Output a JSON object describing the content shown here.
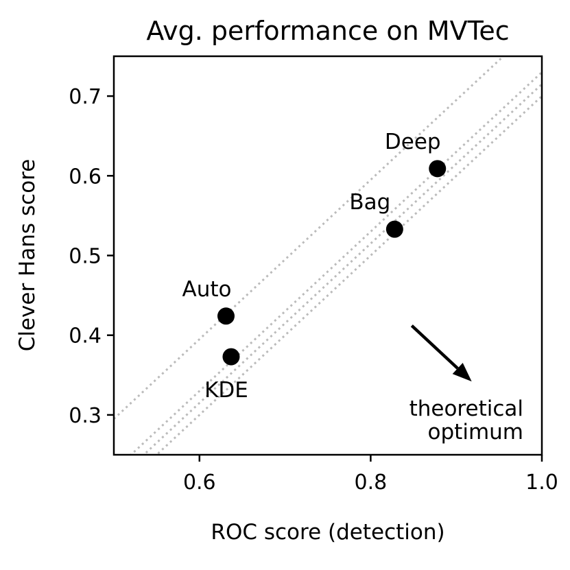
{
  "chart_data": {
    "type": "scatter",
    "title": "Avg. performance on MVTec",
    "xlabel": "ROC score (detection)",
    "ylabel": "Clever Hans score",
    "xlim": [
      0.5,
      1.0
    ],
    "ylim": [
      0.25,
      0.75
    ],
    "xticks": [
      0.6,
      0.8,
      1.0
    ],
    "xtick_labels": [
      "0.6",
      "0.8",
      "1.0"
    ],
    "yticks": [
      0.3,
      0.4,
      0.5,
      0.6,
      0.7
    ],
    "ytick_labels": [
      "0.3",
      "0.4",
      "0.5",
      "0.6",
      "0.7"
    ],
    "grid": false,
    "points": [
      {
        "label": "Deep",
        "x": 0.878,
        "y": 0.609
      },
      {
        "label": "Bag",
        "x": 0.828,
        "y": 0.533
      },
      {
        "label": "Auto",
        "x": 0.631,
        "y": 0.424
      },
      {
        "label": "KDE",
        "x": 0.637,
        "y": 0.373
      }
    ],
    "reference_lines": [
      {
        "x": [
          0.5,
          1.0
        ],
        "y": [
          0.295,
          0.795
        ]
      },
      {
        "x": [
          0.5,
          1.0
        ],
        "y": [
          0.215,
          0.715
        ]
      },
      {
        "x": [
          0.5,
          1.0
        ],
        "y": [
          0.2,
          0.7
        ]
      },
      {
        "x": [
          0.5,
          1.0
        ],
        "y": [
          0.23,
          0.73
        ]
      }
    ],
    "annotation": {
      "lines": [
        "theoretical",
        "optimum"
      ],
      "arrow_from": [
        0.848,
        0.412
      ],
      "arrow_to": [
        0.918,
        0.342
      ]
    },
    "colors": {
      "points": "#000000",
      "reference": "#bbbbbb"
    }
  }
}
